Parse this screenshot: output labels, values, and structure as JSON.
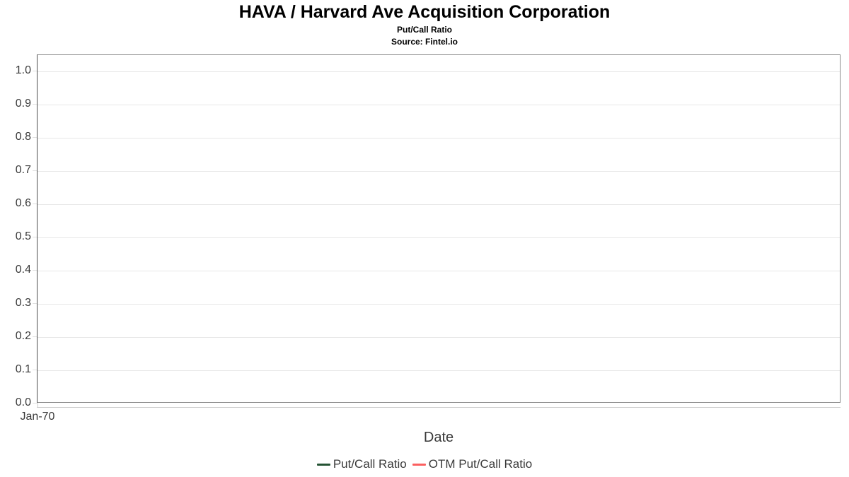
{
  "chart_data": {
    "type": "line",
    "title": "HAVA / Harvard Ave Acquisition Corporation",
    "subtitle": "Put/Call Ratio",
    "source": "Source: Fintel.io",
    "xlabel": "Date",
    "x_tick_labels": [
      "Jan-70"
    ],
    "y_tick_labels": [
      "0.0",
      "0.1",
      "0.2",
      "0.3",
      "0.4",
      "0.5",
      "0.6",
      "0.7",
      "0.8",
      "0.9",
      "1.0"
    ],
    "yticks": [
      0.0,
      0.1,
      0.2,
      0.3,
      0.4,
      0.5,
      0.6,
      0.7,
      0.8,
      0.9,
      1.0
    ],
    "ylim": [
      0,
      1.05
    ],
    "grid": "horizontal",
    "legend_position": "bottom-center",
    "series": [
      {
        "name": "Put/Call Ratio",
        "color": "#255334",
        "values": []
      },
      {
        "name": "OTM Put/Call Ratio",
        "color": "#fb6060",
        "values": []
      }
    ],
    "colors": {
      "plot_border": "#8c8c8c",
      "y_axis_line": "#4d4d4d",
      "gridline": "#e7e7e7",
      "tick_text": "#3a3a3a",
      "title_text": "#000000"
    }
  }
}
